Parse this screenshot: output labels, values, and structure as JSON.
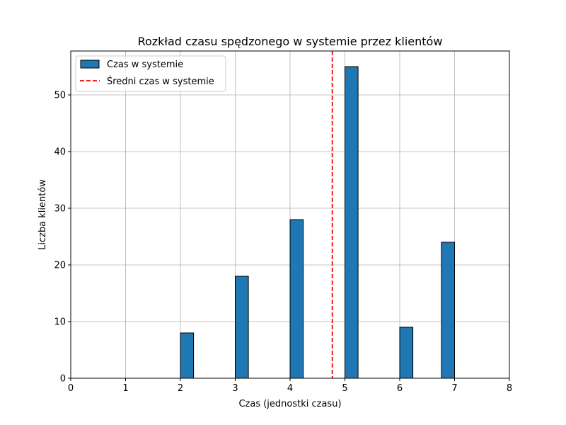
{
  "chart_data": {
    "type": "bar",
    "title": "Rozkład czasu spędzonego w systemie przez klientów",
    "xlabel": "Czas (jednostki czasu)",
    "ylabel": "Liczba klientów",
    "xlim": [
      0,
      8
    ],
    "ylim": [
      0,
      57.75
    ],
    "xticks": [
      "0",
      "1",
      "2",
      "3",
      "4",
      "5",
      "6",
      "7",
      "8"
    ],
    "yticks": [
      "0",
      "10",
      "20",
      "30",
      "40",
      "50"
    ],
    "grid": true,
    "legend_position": "top-left",
    "series": [
      {
        "name": "Czas w systemie",
        "kind": "histogram",
        "color": "#1f77b4",
        "edgecolor": "#000000",
        "bars": [
          {
            "x_start": 2.0,
            "x_end": 2.24,
            "value": 8
          },
          {
            "x_start": 3.0,
            "x_end": 3.24,
            "value": 18
          },
          {
            "x_start": 4.0,
            "x_end": 4.24,
            "value": 28
          },
          {
            "x_start": 5.0,
            "x_end": 5.24,
            "value": 55
          },
          {
            "x_start": 6.0,
            "x_end": 6.24,
            "value": 9
          },
          {
            "x_start": 6.76,
            "x_end": 7.0,
            "value": 24
          }
        ]
      },
      {
        "name": "Średni czas w systemie",
        "kind": "vline",
        "x": 4.77,
        "color": "#ff0000",
        "linestyle": "dashed"
      }
    ]
  }
}
